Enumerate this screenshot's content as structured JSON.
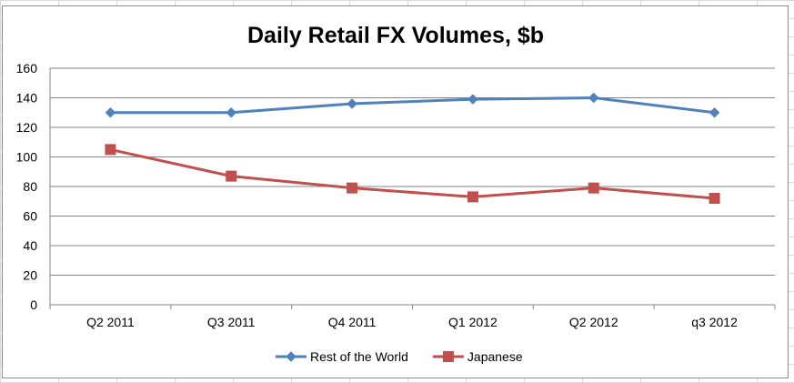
{
  "chart_data": {
    "type": "line",
    "title": "Daily Retail FX Volumes, $b",
    "categories": [
      "Q2 2011",
      "Q3 2011",
      "Q4 2011",
      "Q1 2012",
      "Q2 2012",
      "q3 2012"
    ],
    "ylim": [
      0,
      160
    ],
    "yticks": [
      0,
      20,
      40,
      60,
      80,
      100,
      120,
      140,
      160
    ],
    "grid": true,
    "legend_position": "bottom",
    "series": [
      {
        "name": "Rest of the World",
        "color": "#4f81bd",
        "marker": "diamond",
        "values": [
          130,
          130,
          136,
          139,
          140,
          130
        ]
      },
      {
        "name": "Japanese",
        "color": "#c0504d",
        "marker": "square",
        "values": [
          105,
          87,
          79,
          73,
          79,
          72
        ]
      }
    ]
  }
}
